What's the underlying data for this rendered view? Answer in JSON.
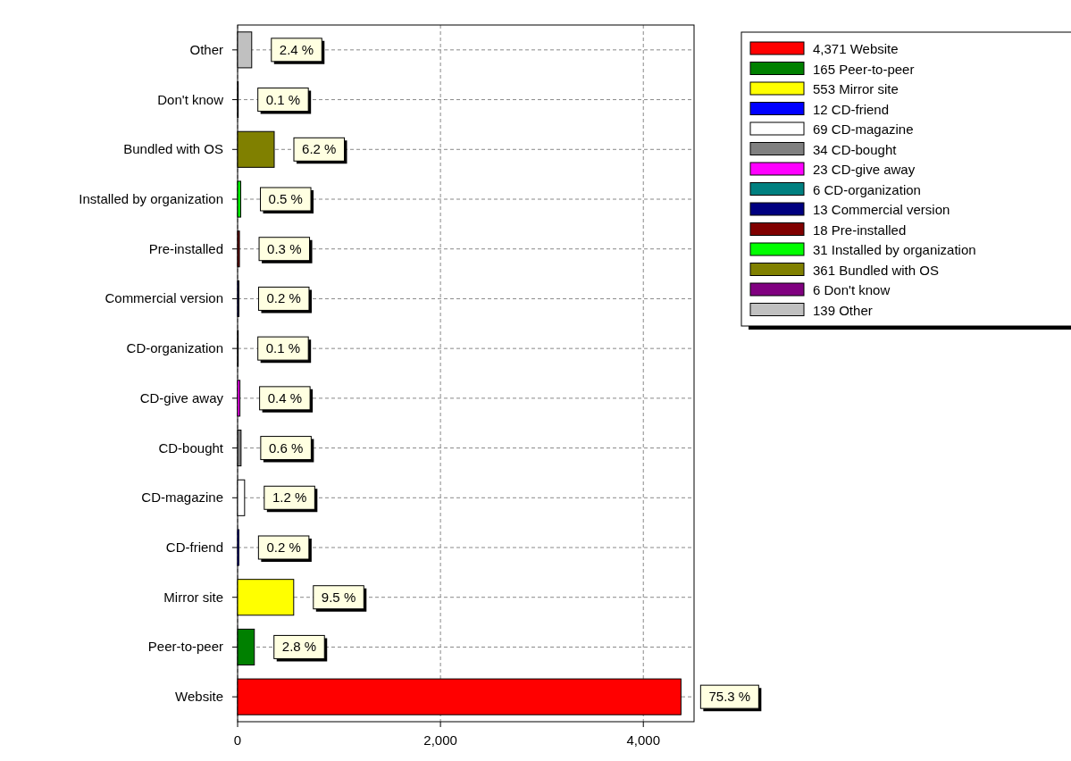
{
  "chart_data": {
    "type": "bar",
    "orientation": "horizontal",
    "categories": [
      "Other",
      "Don't know",
      "Bundled with OS",
      "Installed by organization",
      "Pre-installed",
      "Commercial version",
      "CD-organization",
      "CD-give away",
      "CD-bought",
      "CD-magazine",
      "CD-friend",
      "Mirror site",
      "Peer-to-peer",
      "Website"
    ],
    "series": [
      {
        "name": "4,371 Website",
        "color": "#ff0000",
        "values": [
          null,
          null,
          null,
          null,
          null,
          null,
          null,
          null,
          null,
          null,
          null,
          null,
          null,
          4371
        ]
      },
      {
        "name": "165 Peer-to-peer",
        "color": "#008000",
        "values": [
          null,
          null,
          null,
          null,
          null,
          null,
          null,
          null,
          null,
          null,
          null,
          null,
          165,
          null
        ]
      },
      {
        "name": "553 Mirror site",
        "color": "#ffff00",
        "values": [
          null,
          null,
          null,
          null,
          null,
          null,
          null,
          null,
          null,
          null,
          null,
          553,
          null,
          null
        ]
      },
      {
        "name": "12 CD-friend",
        "color": "#0000ff",
        "values": [
          null,
          null,
          null,
          null,
          null,
          null,
          null,
          null,
          null,
          null,
          12,
          null,
          null,
          null
        ]
      },
      {
        "name": "69 CD-magazine",
        "color": "#ffffff",
        "values": [
          null,
          null,
          null,
          null,
          null,
          null,
          null,
          null,
          null,
          69,
          null,
          null,
          null,
          null
        ]
      },
      {
        "name": "34 CD-bought",
        "color": "#808080",
        "values": [
          null,
          null,
          null,
          null,
          null,
          null,
          null,
          null,
          34,
          null,
          null,
          null,
          null,
          null
        ]
      },
      {
        "name": "23 CD-give away",
        "color": "#ff00ff",
        "values": [
          null,
          null,
          null,
          null,
          null,
          null,
          null,
          23,
          null,
          null,
          null,
          null,
          null,
          null
        ]
      },
      {
        "name": "6 CD-organization",
        "color": "#008080",
        "values": [
          null,
          null,
          null,
          null,
          null,
          null,
          6,
          null,
          null,
          null,
          null,
          null,
          null,
          null
        ]
      },
      {
        "name": "13 Commercial version",
        "color": "#000080",
        "values": [
          null,
          null,
          null,
          null,
          null,
          13,
          null,
          null,
          null,
          null,
          null,
          null,
          null,
          null
        ]
      },
      {
        "name": "18 Pre-installed",
        "color": "#800000",
        "values": [
          null,
          null,
          null,
          null,
          18,
          null,
          null,
          null,
          null,
          null,
          null,
          null,
          null,
          null
        ]
      },
      {
        "name": "31 Installed by organization",
        "color": "#00ff00",
        "values": [
          null,
          null,
          null,
          31,
          null,
          null,
          null,
          null,
          null,
          null,
          null,
          null,
          null,
          null
        ]
      },
      {
        "name": "361 Bundled with OS",
        "color": "#808000",
        "values": [
          null,
          null,
          361,
          null,
          null,
          null,
          null,
          null,
          null,
          null,
          null,
          null,
          null,
          null
        ]
      },
      {
        "name": "6 Don't know",
        "color": "#800080",
        "values": [
          null,
          6,
          null,
          null,
          null,
          null,
          null,
          null,
          null,
          null,
          null,
          null,
          null,
          null
        ]
      },
      {
        "name": "139 Other",
        "color": "#c0c0c0",
        "values": [
          139,
          null,
          null,
          null,
          null,
          null,
          null,
          null,
          null,
          null,
          null,
          null,
          null,
          null
        ]
      }
    ],
    "annotations": [
      {
        "text": "2.4 %",
        "x": 139,
        "y": "Other"
      },
      {
        "text": "0.1 %",
        "x": 6,
        "y": "Don't know"
      },
      {
        "text": "6.2 %",
        "x": 361,
        "y": "Bundled with OS"
      },
      {
        "text": "0.5 %",
        "x": 31,
        "y": "Installed by organization"
      },
      {
        "text": "0.3 %",
        "x": 18,
        "y": "Pre-installed"
      },
      {
        "text": "0.2 %",
        "x": 13,
        "y": "Commercial version"
      },
      {
        "text": "0.1 %",
        "x": 6,
        "y": "CD-organization"
      },
      {
        "text": "0.4 %",
        "x": 23,
        "y": "CD-give away"
      },
      {
        "text": "0.6 %",
        "x": 34,
        "y": "CD-bought"
      },
      {
        "text": "1.2 %",
        "x": 69,
        "y": "CD-magazine"
      },
      {
        "text": "0.2 %",
        "x": 12,
        "y": "CD-friend"
      },
      {
        "text": "9.5 %",
        "x": 553,
        "y": "Mirror site"
      },
      {
        "text": "2.8 %",
        "x": 165,
        "y": "Peer-to-peer"
      },
      {
        "text": "75.3 %",
        "x": 4371,
        "y": "Website"
      }
    ],
    "xlim": [
      0,
      4500
    ],
    "xticks": [
      0,
      {
        "value": 2000,
        "label": "2,000"
      },
      {
        "value": 4000,
        "label": "4,000"
      }
    ],
    "grid": true,
    "legend": "top right"
  }
}
